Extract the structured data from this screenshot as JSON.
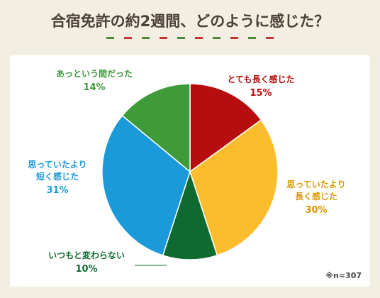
{
  "header": {
    "title": "合宿免許の約2週間、どのように感じた？",
    "dash_colors": [
      "#4d8a3a",
      "#c53434"
    ]
  },
  "note": "※n=307",
  "chart_data": {
    "type": "pie",
    "title": "",
    "start_angle_deg": 0,
    "direction": "clockwise",
    "slices": [
      {
        "lines": [
          "とても長く感じた"
        ],
        "percent_label": "15%",
        "value": 15,
        "color": "#b80d0f"
      },
      {
        "lines": [
          "思っていたより",
          "長く感じた"
        ],
        "percent_label": "30%",
        "value": 30,
        "color": "#fbbd2d"
      },
      {
        "lines": [
          "いつもと変わらない"
        ],
        "percent_label": "10%",
        "value": 10,
        "color": "#0e6a2f"
      },
      {
        "lines": [
          "思っていたより",
          "短く感じた"
        ],
        "percent_label": "31%",
        "value": 31,
        "color": "#1a9ad8"
      },
      {
        "lines": [
          "あっという間だった"
        ],
        "percent_label": "14%",
        "value": 14,
        "color": "#3f9a3a"
      }
    ],
    "label_colors": [
      "#b80d0f",
      "#d99a00",
      "#0e6a2f",
      "#1a9ad8",
      "#3f9a3a"
    ]
  }
}
